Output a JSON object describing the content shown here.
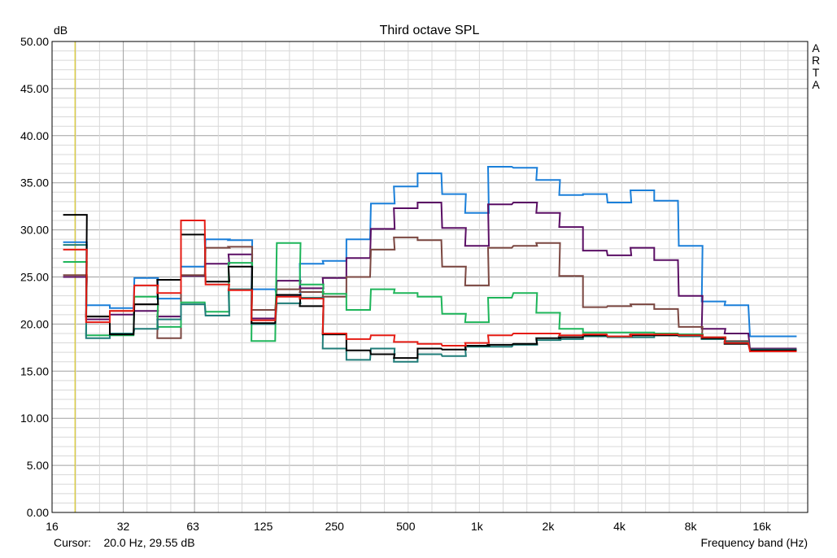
{
  "chart_data": {
    "type": "line",
    "title": "Third octave SPL",
    "ylabel": "dB",
    "xlabel": "Frequency band (Hz)",
    "ylim": [
      0,
      50
    ],
    "y_ticks": [
      "0.00",
      "5.00",
      "10.00",
      "15.00",
      "20.00",
      "25.00",
      "30.00",
      "35.00",
      "40.00",
      "45.00",
      "50.00"
    ],
    "x_scale": "log",
    "xlim": [
      16,
      25000
    ],
    "x_tick_labels": [
      {
        "f": 16,
        "label": "16"
      },
      {
        "f": 32,
        "label": "32"
      },
      {
        "f": 63,
        "label": "63"
      },
      {
        "f": 125,
        "label": "125"
      },
      {
        "f": 250,
        "label": "250"
      },
      {
        "f": 500,
        "label": "500"
      },
      {
        "f": 1000,
        "label": "1k"
      },
      {
        "f": 2000,
        "label": "2k"
      },
      {
        "f": 4000,
        "label": "4k"
      },
      {
        "f": 8000,
        "label": "8k"
      },
      {
        "f": 16000,
        "label": "16k"
      }
    ],
    "grid": true,
    "bands": [
      20,
      25,
      31.5,
      40,
      50,
      63,
      80,
      100,
      125,
      160,
      200,
      250,
      315,
      400,
      500,
      630,
      800,
      1000,
      1250,
      1600,
      2000,
      2500,
      3150,
      4000,
      5000,
      6300,
      8000,
      10000,
      12500,
      16000,
      20000
    ],
    "series": [
      {
        "color": "#1a7fd9",
        "values": [
          28.7,
          22.0,
          21.7,
          24.9,
          22.7,
          26.1,
          29.0,
          28.9,
          23.7,
          23.0,
          26.4,
          26.7,
          29.0,
          32.8,
          34.6,
          36.0,
          33.8,
          31.8,
          36.7,
          36.6,
          35.3,
          33.7,
          33.8,
          32.9,
          34.2,
          33.1,
          28.3,
          22.4,
          22.0,
          18.7,
          18.7
        ]
      },
      {
        "color": "#5a0e64",
        "values": [
          25.0,
          20.5,
          21.0,
          21.4,
          20.8,
          25.1,
          26.4,
          27.4,
          20.6,
          24.6,
          23.8,
          24.9,
          27.0,
          30.1,
          32.3,
          32.9,
          30.2,
          28.3,
          32.7,
          32.9,
          31.8,
          30.3,
          27.8,
          27.3,
          28.1,
          26.8,
          23.0,
          19.5,
          19.0,
          17.4,
          17.4
        ]
      },
      {
        "color": "#7b4741",
        "values": [
          25.2,
          20.8,
          21.4,
          22.1,
          18.5,
          25.2,
          28.1,
          28.2,
          21.5,
          23.7,
          23.4,
          22.9,
          25.0,
          27.9,
          29.2,
          28.9,
          26.1,
          24.1,
          28.1,
          28.3,
          28.6,
          25.1,
          21.8,
          21.9,
          22.1,
          21.6,
          19.7,
          18.4,
          18.2,
          17.3,
          17.3
        ]
      },
      {
        "color": "#1eb55a",
        "values": [
          26.6,
          18.8,
          18.8,
          22.9,
          19.7,
          22.3,
          21.3,
          26.5,
          18.2,
          28.6,
          24.2,
          23.2,
          21.5,
          23.7,
          23.3,
          22.9,
          21.1,
          20.2,
          22.8,
          23.3,
          21.2,
          19.5,
          19.1,
          19.1,
          19.1,
          19.0,
          18.9,
          18.6,
          18.0,
          17.2,
          17.2
        ]
      },
      {
        "color": "#1f7c78",
        "values": [
          28.4,
          18.5,
          19.0,
          19.5,
          20.5,
          22.1,
          20.9,
          23.7,
          20.0,
          22.2,
          22.8,
          17.4,
          16.2,
          17.4,
          16.0,
          16.8,
          16.6,
          17.6,
          17.6,
          17.8,
          18.3,
          18.4,
          18.7,
          18.6,
          18.6,
          18.8,
          18.7,
          18.4,
          18.1,
          17.3,
          17.3
        ]
      },
      {
        "color": "#000000",
        "values": [
          31.6,
          20.8,
          18.9,
          22.1,
          24.7,
          29.5,
          24.5,
          26.1,
          20.1,
          23.1,
          21.9,
          18.9,
          17.2,
          16.8,
          16.4,
          17.4,
          17.3,
          17.7,
          17.8,
          17.9,
          18.5,
          18.6,
          18.8,
          18.7,
          18.8,
          18.8,
          18.8,
          18.5,
          17.9,
          17.2,
          17.2
        ]
      },
      {
        "color": "#e51c14",
        "values": [
          27.9,
          20.2,
          21.4,
          24.1,
          23.3,
          31.0,
          24.2,
          23.6,
          20.4,
          22.9,
          22.7,
          19.0,
          18.4,
          18.8,
          18.1,
          17.9,
          17.7,
          18.0,
          18.8,
          19.0,
          19.0,
          18.8,
          18.9,
          18.7,
          18.9,
          18.9,
          18.8,
          18.6,
          18.0,
          17.1,
          17.1
        ]
      }
    ],
    "cursor_line_hz": 20
  },
  "cursor": {
    "label": "Cursor:",
    "value": "20.0 Hz, 29.55 dB"
  },
  "watermark": "ARTA"
}
